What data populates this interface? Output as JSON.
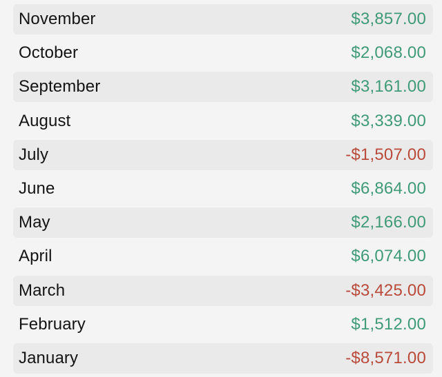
{
  "colors": {
    "background": "#f4f4f4",
    "row_shade": "#eaeaea",
    "positive": "#3f9a78",
    "negative": "#b94a3a",
    "text": "#141414"
  },
  "rows": [
    {
      "month": "November",
      "amount": "$3,857.00",
      "sign": "pos"
    },
    {
      "month": "October",
      "amount": "$2,068.00",
      "sign": "pos"
    },
    {
      "month": "September",
      "amount": "$3,161.00",
      "sign": "pos"
    },
    {
      "month": "August",
      "amount": "$3,339.00",
      "sign": "pos"
    },
    {
      "month": "July",
      "amount": "-$1,507.00",
      "sign": "neg"
    },
    {
      "month": "June",
      "amount": "$6,864.00",
      "sign": "pos"
    },
    {
      "month": "May",
      "amount": "$2,166.00",
      "sign": "pos"
    },
    {
      "month": "April",
      "amount": "$6,074.00",
      "sign": "pos"
    },
    {
      "month": "March",
      "amount": "-$3,425.00",
      "sign": "neg"
    },
    {
      "month": "February",
      "amount": "$1,512.00",
      "sign": "pos"
    },
    {
      "month": "January",
      "amount": "-$8,571.00",
      "sign": "neg"
    }
  ]
}
